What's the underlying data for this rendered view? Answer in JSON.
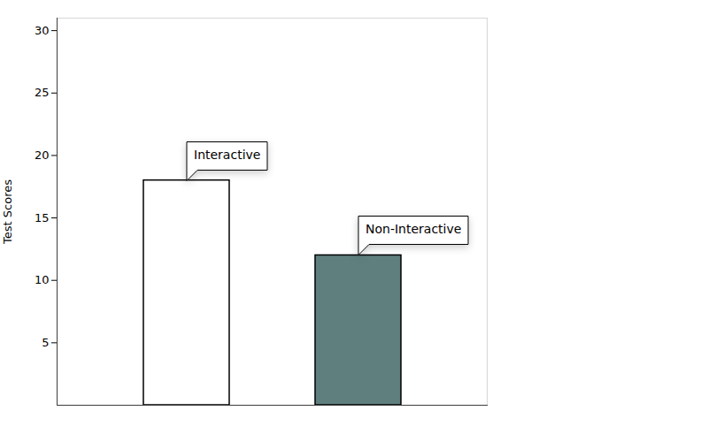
{
  "chart_data": {
    "type": "bar",
    "categories": [
      "Interactive",
      "Non-Interactive"
    ],
    "values": [
      18,
      12
    ],
    "colors": [
      "#ffffff",
      "#5f7f7f"
    ],
    "ylabel": "Test Scores",
    "ylim": [
      0,
      31
    ],
    "yticks": [
      5,
      10,
      15,
      20,
      25,
      30
    ],
    "tick_labels": "y",
    "grid": false
  }
}
